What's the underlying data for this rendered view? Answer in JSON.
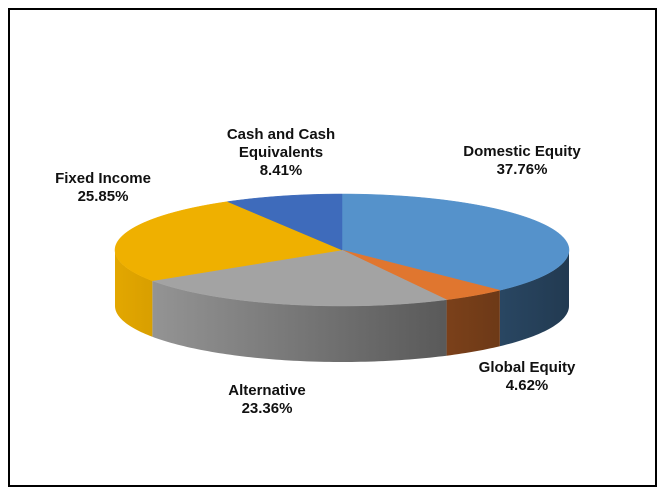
{
  "chart_data": {
    "type": "pie3d",
    "categories": [
      "Domestic Equity",
      "Global Equity",
      "Alternative",
      "Fixed Income",
      "Cash and Cash Equivalents"
    ],
    "values": [
      37.76,
      4.62,
      23.36,
      25.85,
      8.41
    ],
    "value_labels": [
      "37.76%",
      "4.62%",
      "23.36%",
      "25.85%",
      "8.41%"
    ],
    "colors": [
      "#5592cb",
      "#e0762f",
      "#a3a3a3",
      "#efb000",
      "#3e6bbb"
    ]
  }
}
